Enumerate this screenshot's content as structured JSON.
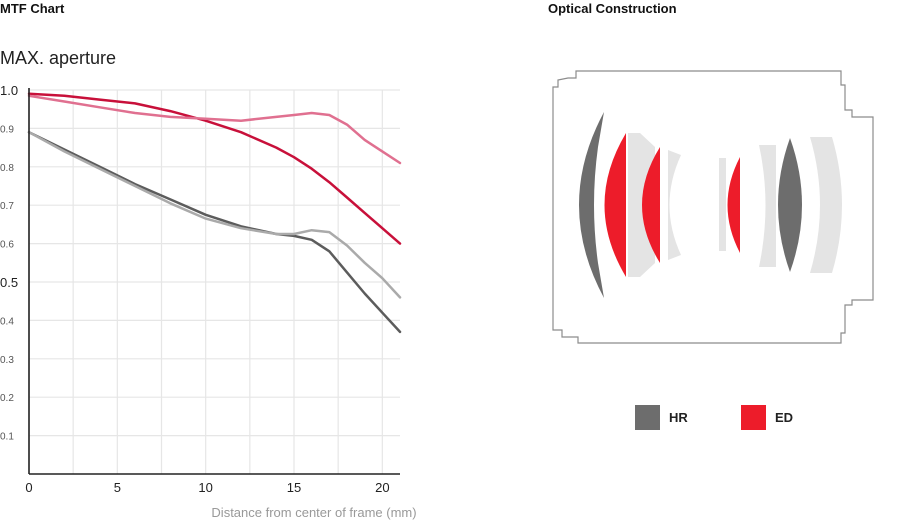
{
  "headings": {
    "mtf_chart": "MTF Chart",
    "optical_construction": "Optical Construction"
  },
  "chart_data": {
    "type": "line",
    "title": "MAX. aperture",
    "xlabel": "Distance from center of frame (mm)",
    "ylabel": "",
    "xlim": [
      0,
      21
    ],
    "ylim": [
      0,
      1.0
    ],
    "grid": true,
    "x_ticks": [
      "0",
      "5",
      "10",
      "15",
      "20"
    ],
    "y_ticks": [
      "1.0",
      "0.9",
      "0.8",
      "0.7",
      "0.6",
      "0.5",
      "0.4",
      "0.3",
      "0.2",
      "0.1"
    ],
    "x": [
      0,
      2,
      4,
      6,
      8,
      10,
      12,
      14,
      15,
      16,
      17,
      18,
      19,
      20,
      21
    ],
    "series": [
      {
        "color": "#c8103a",
        "values": [
          0.99,
          0.985,
          0.975,
          0.965,
          0.945,
          0.92,
          0.89,
          0.85,
          0.825,
          0.795,
          0.76,
          0.72,
          0.68,
          0.64,
          0.6
        ]
      },
      {
        "color": "#e07090",
        "values": [
          0.985,
          0.97,
          0.955,
          0.94,
          0.93,
          0.925,
          0.92,
          0.93,
          0.935,
          0.94,
          0.935,
          0.91,
          0.87,
          0.84,
          0.81
        ]
      },
      {
        "color": "#5c5c5c",
        "values": [
          0.89,
          0.845,
          0.8,
          0.755,
          0.715,
          0.675,
          0.645,
          0.625,
          0.62,
          0.61,
          0.58,
          0.525,
          0.47,
          0.42,
          0.37
        ]
      },
      {
        "color": "#aaaaaa",
        "values": [
          0.89,
          0.84,
          0.795,
          0.75,
          0.705,
          0.665,
          0.64,
          0.625,
          0.625,
          0.635,
          0.63,
          0.595,
          0.55,
          0.51,
          0.46
        ]
      }
    ]
  },
  "optical_construction": {
    "legend": [
      {
        "label": "HR",
        "color": "#6d6d6d"
      },
      {
        "label": "ED",
        "color": "#ed1c2a"
      }
    ],
    "colors": {
      "standard": "#e4e4e4",
      "outline": "#8c8c8c"
    }
  }
}
